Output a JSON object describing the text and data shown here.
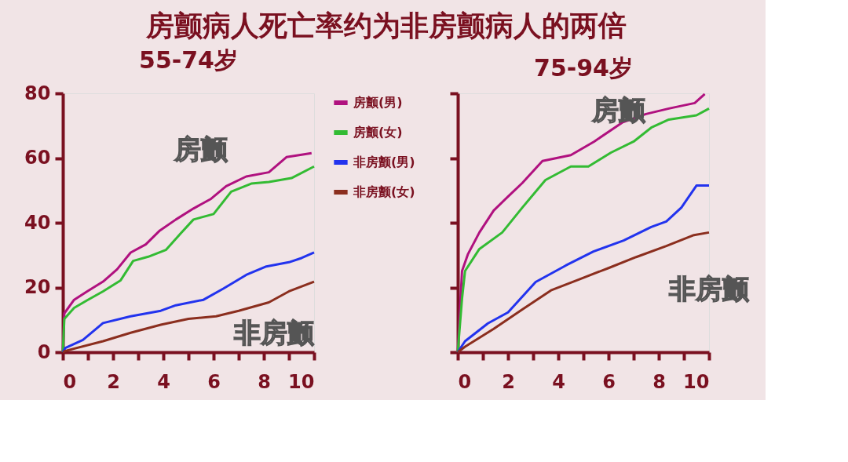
{
  "chart_data": [
    {
      "type": "line",
      "title": "房颤病人死亡率约为非房颤病人的两倍",
      "subtitle": "55-74岁",
      "xlim": [
        0,
        10
      ],
      "ylim": [
        0,
        80
      ],
      "xticks": [
        0,
        {
          "value": 1,
          "label": null
        },
        2,
        {
          "value": 3,
          "label": null
        },
        4,
        {
          "value": 5,
          "label": null
        },
        6,
        {
          "value": 7,
          "label": null
        },
        8,
        {
          "value": 9,
          "label": null
        },
        10
      ],
      "yticks": [
        0,
        20,
        40,
        60,
        80
      ],
      "grid": false,
      "legend": "right",
      "line_style": "solid",
      "marker": "none",
      "annotations": [
        "房颤",
        "非房颤"
      ],
      "series": [
        {
          "name": "房颤(男)",
          "color": "#b0117f",
          "x": [
            0,
            0.06,
            0.45,
            0.97,
            1.6,
            2.16,
            2.7,
            3.3,
            3.86,
            4.5,
            5.2,
            5.9,
            6.5,
            7.3,
            8.2,
            8.9,
            9.9
          ],
          "values": [
            0,
            12,
            16.2,
            18.8,
            21.8,
            25.6,
            30.8,
            33.3,
            37.6,
            41,
            44.4,
            47.4,
            51.3,
            54.3,
            55.6,
            60.3,
            61.5
          ]
        },
        {
          "name": "房颤(女)",
          "color": "#33bb33",
          "x": [
            0,
            0.06,
            0.45,
            1.0,
            1.6,
            2.3,
            2.8,
            3.4,
            4.1,
            4.7,
            5.2,
            6.0,
            6.7,
            7.5,
            8.2,
            9.1,
            10
          ],
          "values": [
            0,
            10.3,
            13.7,
            16.2,
            18.8,
            22.2,
            28.2,
            29.5,
            31.6,
            36.8,
            41,
            42.7,
            49.6,
            52.1,
            52.6,
            53.8,
            57.4
          ]
        },
        {
          "name": "非房颤(男)",
          "color": "#2233ee",
          "x": [
            0,
            0.1,
            0.8,
            1.6,
            2.7,
            3.9,
            4.5,
            5.6,
            6.4,
            7.3,
            8.1,
            9.0,
            9.5,
            10
          ],
          "values": [
            0,
            1.3,
            3.8,
            9,
            11.1,
            12.8,
            14.5,
            16.2,
            19.7,
            23.9,
            26.5,
            27.8,
            29.1,
            30.8
          ]
        },
        {
          "name": "非房颤(女)",
          "color": "#8b2e1e",
          "x": [
            0,
            0.1,
            1.6,
            2.7,
            3.9,
            5.0,
            6.1,
            7.0,
            8.2,
            9.0,
            10
          ],
          "values": [
            0,
            0.4,
            3.4,
            6,
            8.5,
            10.3,
            11.1,
            12.8,
            15.4,
            18.8,
            21.8
          ]
        }
      ]
    },
    {
      "type": "line",
      "subtitle": "75-94岁",
      "xlim": [
        0,
        10
      ],
      "ylim": [
        0,
        80
      ],
      "xticks": [
        0,
        {
          "value": 1,
          "label": null
        },
        2,
        {
          "value": 3,
          "label": null
        },
        4,
        {
          "value": 5,
          "label": null
        },
        6,
        {
          "value": 7,
          "label": null
        },
        8,
        {
          "value": 9,
          "label": null
        },
        10
      ],
      "yticks": [
        0,
        20,
        40,
        60,
        80
      ],
      "tick_labels": "x",
      "grid": false,
      "line_style": "solid",
      "marker": "none",
      "annotations": [
        "房颤",
        "非房颤"
      ],
      "series": [
        {
          "color": "#b0117f",
          "x": [
            0,
            0.17,
            0.4,
            0.86,
            1.43,
            2.0,
            2.57,
            3.37,
            4.5,
            5.43,
            6.57,
            7.49,
            8.4,
            9.43,
            9.83
          ],
          "values": [
            0,
            25.1,
            30.2,
            37,
            43.8,
            48.1,
            52.3,
            59.1,
            60.9,
            65.1,
            71.1,
            73.6,
            75.3,
            77,
            79.8
          ]
        },
        {
          "color": "#33bb33",
          "x": [
            0,
            0.17,
            0.29,
            0.86,
            1.77,
            2.57,
            3.49,
            4.5,
            5.2,
            6.1,
            7.0,
            7.7,
            8.4,
            9.5,
            10
          ],
          "values": [
            0,
            16.6,
            25.1,
            31.9,
            37,
            44.7,
            53.2,
            57.4,
            57.4,
            61.7,
            65.1,
            69.4,
            71.9,
            73.2,
            75.3
          ]
        },
        {
          "color": "#2233ee",
          "x": [
            0,
            0.29,
            1.2,
            2.0,
            3.1,
            4.3,
            5.4,
            6.6,
            7.7,
            8.3,
            8.9,
            9.5,
            10
          ],
          "values": [
            0,
            3.4,
            8.9,
            12.3,
            21.7,
            26.8,
            31.1,
            34.5,
            38.7,
            40.4,
            44.7,
            51.5,
            51.5
          ]
        },
        {
          "color": "#8b2e1e",
          "x": [
            0,
            0.29,
            1.43,
            2.57,
            3.71,
            4.86,
            6.0,
            7.1,
            8.3,
            9.4,
            10
          ],
          "values": [
            0,
            1.7,
            7.2,
            13.2,
            19.1,
            22.6,
            26,
            29.4,
            32.8,
            36.2,
            37
          ]
        }
      ]
    }
  ]
}
